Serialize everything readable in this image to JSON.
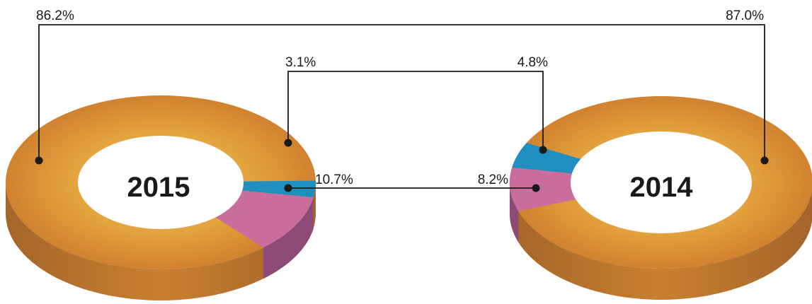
{
  "chart_data": {
    "type": "pie",
    "variant": "3d-donut-pair",
    "series": [
      {
        "name": "2015",
        "values": [
          86.2,
          3.1,
          10.7
        ]
      },
      {
        "name": "2014",
        "values": [
          87.0,
          4.8,
          8.2
        ]
      }
    ],
    "slice_colors": [
      "#d98c2f",
      "#1f8fc0",
      "#c96d9c"
    ],
    "labels": {
      "p2015_a": "86.2%",
      "p2015_b": "3.1%",
      "p2015_c": "10.7%",
      "p2014_a": "87.0%",
      "p2014_b": "4.8%",
      "p2014_c": "8.2%"
    }
  }
}
